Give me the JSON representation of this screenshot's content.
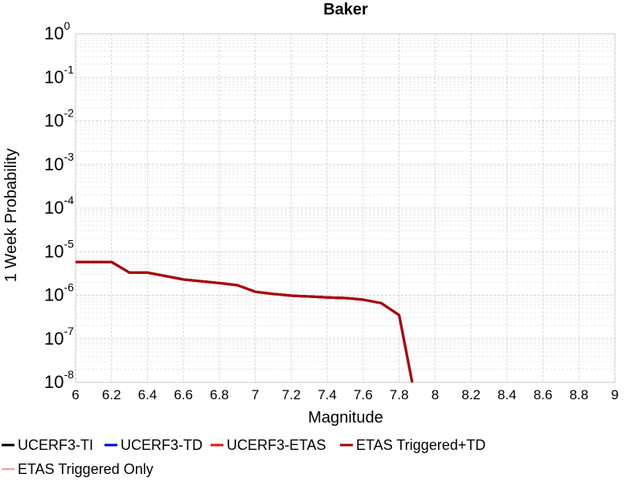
{
  "chart_data": {
    "type": "line",
    "title": "Baker",
    "x_label": "Magnitude",
    "y_label": "1 Week Probability",
    "log_y": true,
    "grid": true,
    "x": [
      6.0,
      6.2,
      6.3,
      6.4,
      6.6,
      6.8,
      6.9,
      7.0,
      7.1,
      7.2,
      7.4,
      7.5,
      7.6,
      7.7,
      7.8,
      7.9
    ],
    "series": [
      {
        "name": "ETAS Triggered Only",
        "color": "#f08080",
        "width": 1.5,
        "values": [
          5.8e-06,
          5.8e-06,
          3.3e-06,
          3.3e-06,
          2.3e-06,
          1.9e-06,
          1.7e-06,
          1.2e-06,
          1.07e-06,
          9.8e-07,
          8.9e-07,
          8.6e-07,
          7.9e-07,
          6.6e-07,
          3.5e-07,
          2.6e-09
        ]
      },
      {
        "name": "UCERF3-TI",
        "color": "#000000",
        "width": 3,
        "values": [
          5.8e-06,
          5.8e-06,
          3.3e-06,
          3.3e-06,
          2.3e-06,
          1.9e-06,
          1.7e-06,
          1.2e-06,
          1.07e-06,
          9.8e-07,
          8.9e-07,
          8.6e-07,
          7.9e-07,
          6.6e-07,
          3.5e-07,
          2.6e-09
        ]
      },
      {
        "name": "UCERF3-TD",
        "color": "#0000cc",
        "width": 3,
        "values": [
          5.8e-06,
          5.8e-06,
          3.3e-06,
          3.3e-06,
          2.3e-06,
          1.9e-06,
          1.7e-06,
          1.2e-06,
          1.07e-06,
          9.8e-07,
          8.9e-07,
          8.6e-07,
          7.9e-07,
          6.6e-07,
          3.5e-07,
          2.6e-09
        ]
      },
      {
        "name": "UCERF3-ETAS",
        "color": "#ee1111",
        "width": 3,
        "values": [
          5.8e-06,
          5.8e-06,
          3.3e-06,
          3.3e-06,
          2.3e-06,
          1.9e-06,
          1.7e-06,
          1.2e-06,
          1.07e-06,
          9.8e-07,
          8.9e-07,
          8.6e-07,
          7.9e-07,
          6.6e-07,
          3.5e-07,
          2.6e-09
        ]
      },
      {
        "name": "ETAS Triggered+TD",
        "color": "#aa0000",
        "width": 3,
        "values": [
          5.8e-06,
          5.8e-06,
          3.3e-06,
          3.3e-06,
          2.3e-06,
          1.9e-06,
          1.7e-06,
          1.2e-06,
          1.07e-06,
          9.8e-07,
          8.9e-07,
          8.6e-07,
          7.9e-07,
          6.6e-07,
          3.5e-07,
          2.6e-09
        ]
      }
    ],
    "legend_order": [
      1,
      2,
      3,
      4,
      0
    ],
    "xlim": [
      6,
      9
    ],
    "xticks": [
      6,
      6.2,
      6.4,
      6.6,
      6.8,
      7,
      7.2,
      7.4,
      7.6,
      7.8,
      8,
      8.2,
      8.4,
      8.6,
      8.8,
      9
    ],
    "ylim": [
      1e-08,
      1
    ],
    "yticks": [
      {
        "value": 1,
        "label": "10",
        "superscript": "0"
      },
      {
        "value": 0.1,
        "label": "10",
        "superscript": "-1"
      },
      {
        "value": 0.01,
        "label": "10",
        "superscript": "-2"
      },
      {
        "value": 0.001,
        "label": "10",
        "superscript": "-3"
      },
      {
        "value": 0.0001,
        "label": "10",
        "superscript": "-4"
      },
      {
        "value": 1e-05,
        "label": "10",
        "superscript": "-5"
      },
      {
        "value": 1e-06,
        "label": "10",
        "superscript": "-6"
      },
      {
        "value": 1e-07,
        "label": "10",
        "superscript": "-7"
      },
      {
        "value": 1e-08,
        "label": "10",
        "superscript": "-8"
      }
    ]
  }
}
